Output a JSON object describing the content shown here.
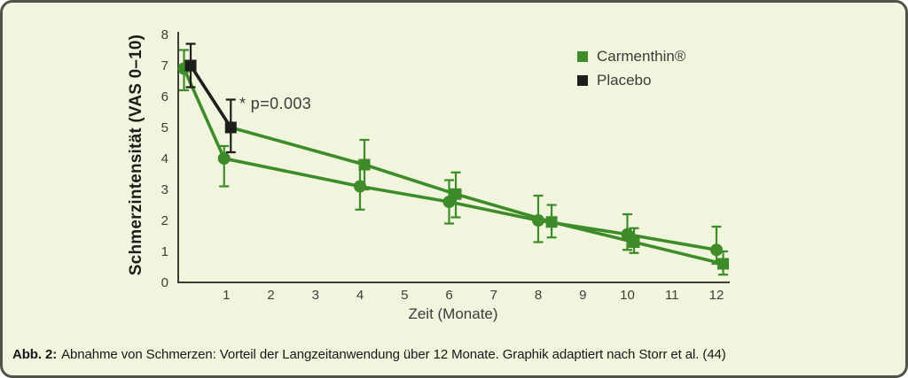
{
  "colors": {
    "panel_background": "#f2f5de",
    "panel_border": "#51524a",
    "carmenthin_green": "#3e8c29",
    "placebo_black": "#1d1d1b",
    "axis_text": "#3c3c39"
  },
  "chart_data": {
    "type": "line",
    "title": "",
    "xlabel": "Zeit (Monate)",
    "ylabel": "Schmerzintensität (VAS 0–10)",
    "xlim": [
      -0.1,
      12.3
    ],
    "ylim": [
      0,
      8
    ],
    "xticks": [
      1,
      2,
      3,
      4,
      5,
      6,
      7,
      8,
      9,
      10,
      11,
      12
    ],
    "yticks": [
      0,
      1,
      2,
      3,
      4,
      5,
      6,
      7,
      8
    ],
    "grid": false,
    "legend_position": "top-right",
    "annotation": {
      "text": "* p=0.003",
      "at_month": 1.3,
      "at_value": 5.9
    },
    "legend": [
      {
        "label": "Carmenthin®",
        "color": "#3e8c29",
        "marker": "square"
      },
      {
        "label": "Placebo",
        "color": "#1d1d1b",
        "marker": "square"
      }
    ],
    "series": [
      {
        "name": "Carmenthin®",
        "marker": "circle",
        "color": "#3e8c29",
        "points": [
          {
            "x": 0.05,
            "y": 6.9,
            "lo": 6.2,
            "hi": 7.5
          },
          {
            "x": 0.95,
            "y": 4.0,
            "lo": 3.1,
            "hi": 4.4
          },
          {
            "x": 4.0,
            "y": 3.1,
            "lo": 2.35,
            "hi": 3.9
          },
          {
            "x": 6.0,
            "y": 2.6,
            "lo": 1.9,
            "hi": 3.3
          },
          {
            "x": 8.0,
            "y": 2.0,
            "lo": 1.3,
            "hi": 2.8
          },
          {
            "x": 10.0,
            "y": 1.55,
            "lo": 1.05,
            "hi": 2.2
          },
          {
            "x": 12.0,
            "y": 1.05,
            "lo": 0.6,
            "hi": 1.8
          }
        ]
      },
      {
        "name": "Placebo",
        "marker": "square",
        "color": "#1d1d1b",
        "point_colors": [
          "#1d1d1b",
          "#1d1d1b",
          "#3e8c29",
          "#3e8c29",
          "#3e8c29",
          "#3e8c29",
          "#3e8c29"
        ],
        "segment_colors": [
          "#1d1d1b",
          "#3e8c29",
          "#3e8c29",
          "#3e8c29",
          "#3e8c29",
          "#3e8c29"
        ],
        "points": [
          {
            "x": 0.2,
            "y": 7.0,
            "lo": 6.3,
            "hi": 7.7
          },
          {
            "x": 1.1,
            "y": 5.0,
            "lo": 4.2,
            "hi": 5.9
          },
          {
            "x": 4.1,
            "y": 3.8,
            "lo": 3.0,
            "hi": 4.6
          },
          {
            "x": 6.15,
            "y": 2.85,
            "lo": 2.1,
            "hi": 3.55
          },
          {
            "x": 8.3,
            "y": 1.95,
            "lo": 1.45,
            "hi": 2.5
          },
          {
            "x": 10.15,
            "y": 1.3,
            "lo": 0.95,
            "hi": 1.75
          },
          {
            "x": 12.15,
            "y": 0.6,
            "lo": 0.25,
            "hi": 1.0
          }
        ]
      }
    ]
  },
  "caption": {
    "label": "Abb. 2:",
    "text": "Abnahme von Schmerzen: Vorteil der Langzeitanwendung über 12 Monate. Graphik adaptiert nach Storr et al. (44)"
  }
}
